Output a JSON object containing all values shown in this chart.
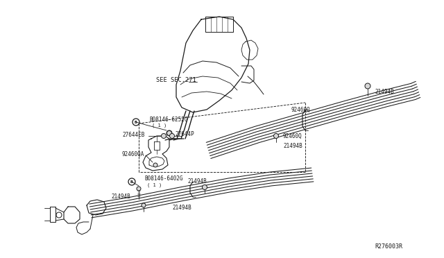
{
  "bg_color": "#ffffff",
  "line_color": "#1a1a1a",
  "text_color": "#1a1a1a",
  "fig_ref": "R276003R",
  "labels": {
    "see_sec": "SEE SEC.271",
    "b08146_6252g": "B08146-6252G",
    "b08146_6252g_sub": "( 1 )",
    "b08146_6402g": "B08146-6402G",
    "b08146_6402g_sub": "( 1 )",
    "27644eb": "27644EB",
    "27644p": "27644P",
    "92460qa": "92460QA",
    "92460q_1": "92460Q",
    "92460q_2": "92460Q",
    "21494b_1": "21494B",
    "21494b_2": "21494B",
    "21494b_3": "21494B",
    "21494b_4": "21494B",
    "21494b_5": "21494B"
  }
}
